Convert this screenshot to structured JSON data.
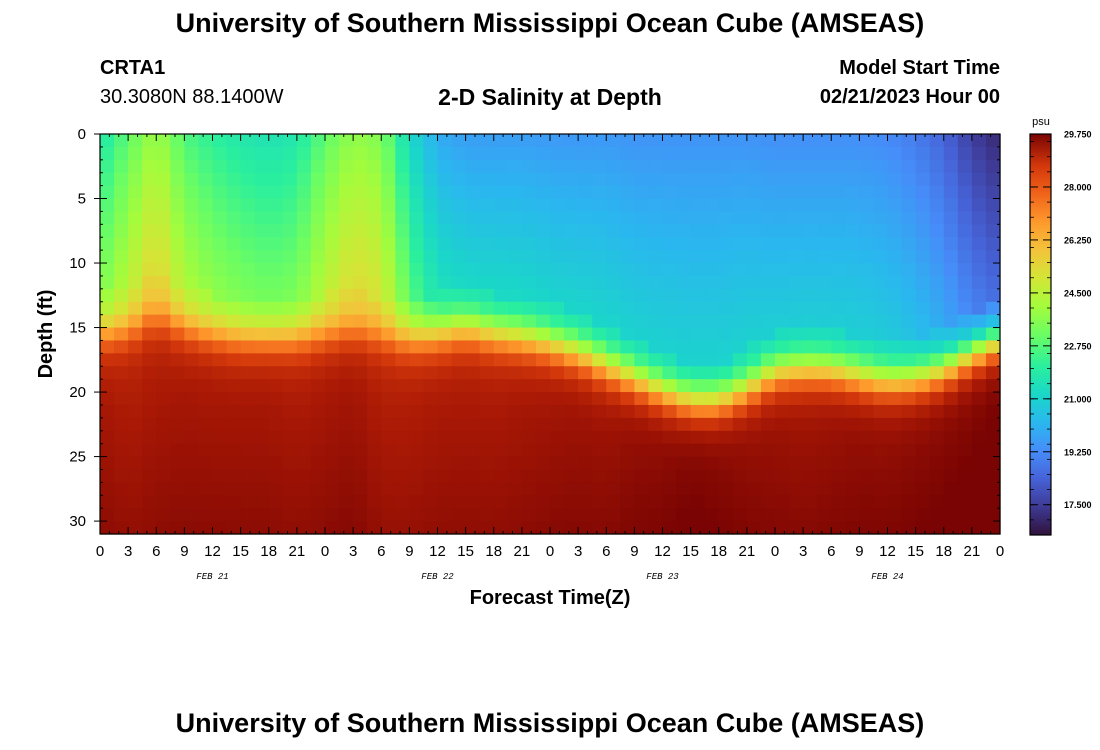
{
  "header": {
    "title": "University of Southern Mississippi Ocean Cube (AMSEAS)",
    "station_name": "CRTA1",
    "station_coords": "30.3080N  88.1400W",
    "subtitle": "2-D Salinity at Depth",
    "model_label": "Model Start Time",
    "model_start": "02/21/2023 Hour 00"
  },
  "footer": {
    "title": "University of Southern Mississippi Ocean Cube (AMSEAS)"
  },
  "chart_data": {
    "type": "heatmap",
    "title": "2-D Salinity at Depth",
    "xlabel": "Forecast Time(Z)",
    "ylabel": "Depth (ft)",
    "xlim": [
      0,
      96
    ],
    "ylim": [
      31,
      0
    ],
    "x_tick_step_hours": 3,
    "x_tick_labels": [
      "0",
      "3",
      "6",
      "9",
      "12",
      "15",
      "18",
      "21",
      "0",
      "3",
      "6",
      "9",
      "12",
      "15",
      "18",
      "21",
      "0",
      "3",
      "6",
      "9",
      "12",
      "15",
      "18",
      "21",
      "0",
      "3",
      "6",
      "9",
      "12",
      "15",
      "18",
      "21",
      "0"
    ],
    "day_labels": [
      {
        "label": "FEB 21",
        "hour": 12
      },
      {
        "label": "FEB 22",
        "hour": 36
      },
      {
        "label": "FEB 23",
        "hour": 60
      },
      {
        "label": "FEB 24",
        "hour": 84
      }
    ],
    "y_ticks": [
      0,
      5,
      10,
      15,
      20,
      25,
      30
    ],
    "colorbar": {
      "unit": "psu",
      "min": 16.5,
      "max": 29.75,
      "tick_values": [
        29.75,
        28.0,
        26.25,
        24.5,
        22.75,
        21.0,
        19.25,
        17.5
      ],
      "tick_labels": [
        "29.750",
        "28.000",
        "26.250",
        "24.500",
        "22.750",
        "21.000",
        "19.250",
        "17.500"
      ]
    },
    "time_hours": [
      0,
      3,
      6,
      9,
      12,
      15,
      18,
      21,
      24,
      27,
      30,
      33,
      36,
      39,
      42,
      45,
      48,
      51,
      54,
      57,
      60,
      63,
      66,
      69,
      72,
      75,
      78,
      81,
      84,
      87,
      90,
      93,
      96
    ],
    "surface_salinity": [
      21.5,
      22.5,
      23.5,
      22.3,
      21.8,
      21.5,
      21.3,
      21.5,
      22.5,
      23.3,
      23.0,
      21.0,
      19.8,
      19.5,
      19.5,
      19.5,
      19.4,
      19.4,
      19.4,
      19.3,
      19.3,
      19.3,
      19.3,
      19.3,
      19.2,
      19.2,
      19.2,
      19.2,
      19.1,
      18.8,
      18.3,
      17.5,
      17.0
    ],
    "halocline_depth_ft": [
      15.5,
      15.2,
      14.2,
      15.0,
      15.5,
      15.8,
      15.8,
      15.8,
      15.5,
      15.3,
      15.6,
      15.8,
      15.5,
      15.0,
      15.5,
      15.8,
      16.3,
      17.0,
      18.0,
      19.0,
      20.0,
      20.8,
      20.8,
      19.8,
      18.5,
      18.2,
      18.3,
      18.8,
      19.2,
      19.0,
      18.3,
      17.0,
      16.0
    ],
    "bottom_salinity": [
      28.8,
      28.6,
      28.7,
      28.8,
      28.8,
      28.8,
      28.8,
      28.7,
      28.8,
      28.9,
      28.6,
      28.6,
      28.7,
      28.7,
      28.7,
      28.8,
      28.9,
      29.0,
      29.0,
      29.2,
      29.3,
      29.5,
      29.4,
      29.2,
      29.1,
      29.0,
      29.1,
      29.2,
      29.2,
      29.3,
      29.4,
      29.5,
      29.7
    ]
  }
}
